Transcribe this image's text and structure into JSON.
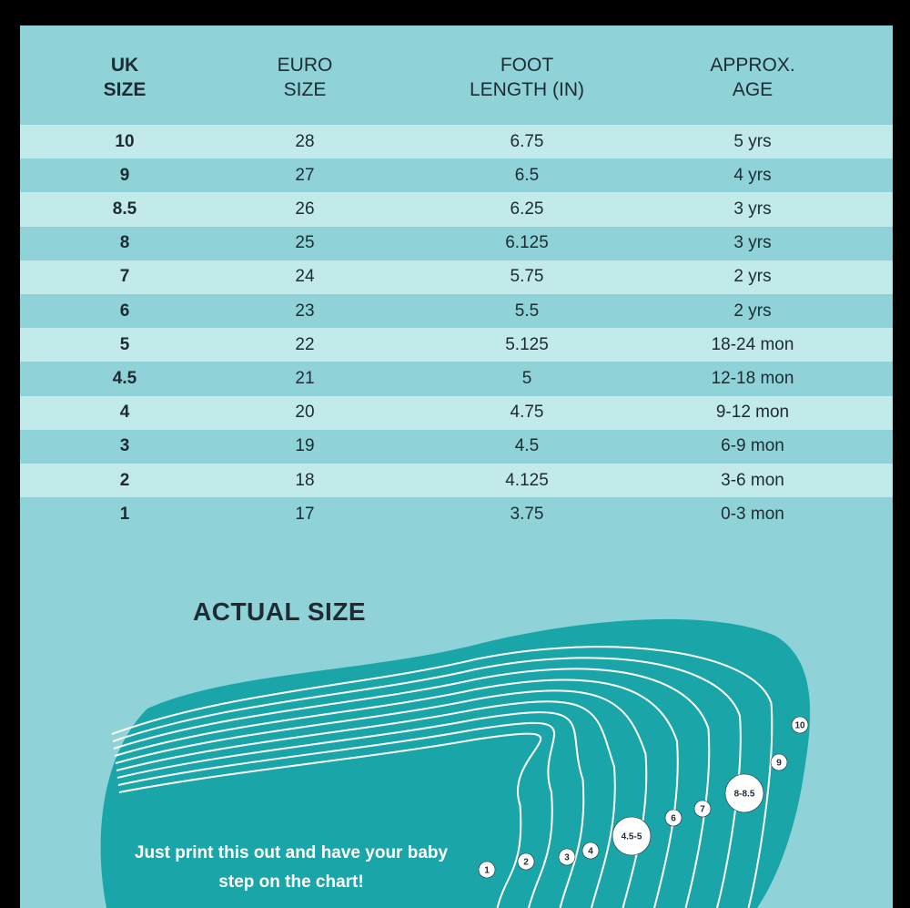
{
  "table": {
    "headers": [
      {
        "label": "UK\nSIZE",
        "bold": true
      },
      {
        "label": "EURO\nSIZE",
        "bold": false
      },
      {
        "label": "FOOT\nLENGTH (IN)",
        "bold": false
      },
      {
        "label": "APPROX.\nAGE",
        "bold": false
      }
    ],
    "rows": [
      [
        "10",
        "28",
        "6.75",
        "5 yrs"
      ],
      [
        "9",
        "27",
        "6.5",
        "4 yrs"
      ],
      [
        "8.5",
        "26",
        "6.25",
        "3 yrs"
      ],
      [
        "8",
        "25",
        "6.125",
        "3 yrs"
      ],
      [
        "7",
        "24",
        "5.75",
        "2 yrs"
      ],
      [
        "6",
        "23",
        "5.5",
        "2 yrs"
      ],
      [
        "5",
        "22",
        "5.125",
        "18-24 mon"
      ],
      [
        "4.5",
        "21",
        "5",
        "12-18 mon"
      ],
      [
        "4",
        "20",
        "4.75",
        "9-12 mon"
      ],
      [
        "3",
        "19",
        "4.5",
        "6-9 mon"
      ],
      [
        "2",
        "18",
        "4.125",
        "3-6 mon"
      ],
      [
        "1",
        "17",
        "3.75",
        "0-3 mon"
      ]
    ]
  },
  "actual_size": {
    "title": "ACTUAL SIZE",
    "caption": "Just print this out and have your baby step on the chart!",
    "markers": [
      "1",
      "2",
      "3",
      "4",
      "4.5-5",
      "6",
      "7",
      "8-8.5",
      "9",
      "10"
    ]
  },
  "colors": {
    "background": "#8fd3d8",
    "row_light": "#c2eaea",
    "foot_fill": "#1aa6a8",
    "text": "#1d2b33"
  }
}
